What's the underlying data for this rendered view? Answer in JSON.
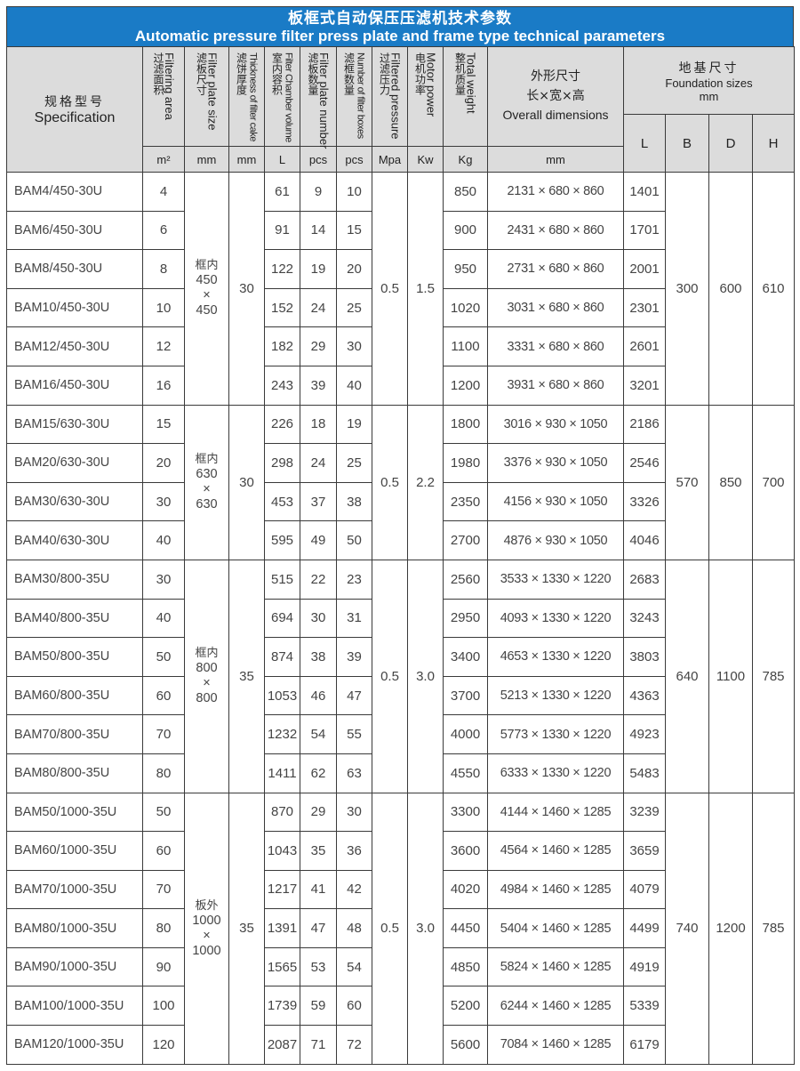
{
  "title": {
    "cn": "板框式自动保压压滤机技术参数",
    "en": "Automatic pressure filter press plate and frame type technical parameters"
  },
  "headers": {
    "spec": {
      "cn": "规格型号",
      "en": "Specification"
    },
    "area": {
      "cn": "过滤面积",
      "en": "Filtering area",
      "unit": "m²"
    },
    "plate_size": {
      "cn": "滤板尺寸",
      "en": "Filter plate size",
      "unit": "mm"
    },
    "cake": {
      "cn": "滤饼厚度",
      "en": "Thickness of filter cake",
      "unit": "mm"
    },
    "volume": {
      "cn": "室内容积",
      "en": "Filter Chamber volume",
      "unit": "L"
    },
    "plates": {
      "cn": "滤板数量",
      "en": "Filter plate number",
      "unit": "pcs"
    },
    "boxes": {
      "cn": "滤框数量",
      "en": "Number of filter boxes",
      "unit": "pcs"
    },
    "pressure": {
      "cn": "过滤压力",
      "en": "Filtered pressure",
      "unit": "Mpa"
    },
    "power": {
      "cn": "电机功率",
      "en": "Motor power",
      "unit": "Kw"
    },
    "weight": {
      "cn": "整机质量",
      "en": "Total weight",
      "unit": "Kg"
    },
    "dims": {
      "cn": "外形尺寸",
      "cn2": "长×宽×高",
      "en": "Overall dimensions",
      "unit": "mm"
    },
    "foundation": {
      "cn": "地基尺寸",
      "en": "Foundation sizes",
      "unit": "mm",
      "L": "L",
      "B": "B",
      "D": "D",
      "H": "H"
    }
  },
  "groups": [
    {
      "plate_prefix": "框内",
      "plate_a": "450",
      "plate_x": "×",
      "plate_b": "450",
      "cake": "30",
      "pressure": "0.5",
      "power": "1.5",
      "B": "300",
      "D": "600",
      "H": "610",
      "rows": [
        {
          "spec": "BAM4/450-30U",
          "area": "4",
          "volume": "61",
          "plates": "9",
          "boxes": "10",
          "weight": "850",
          "dims": "2131 × 680 × 860",
          "L": "1401"
        },
        {
          "spec": "BAM6/450-30U",
          "area": "6",
          "volume": "91",
          "plates": "14",
          "boxes": "15",
          "weight": "900",
          "dims": "2431 × 680 × 860",
          "L": "1701"
        },
        {
          "spec": "BAM8/450-30U",
          "area": "8",
          "volume": "122",
          "plates": "19",
          "boxes": "20",
          "weight": "950",
          "dims": "2731 × 680 × 860",
          "L": "2001"
        },
        {
          "spec": "BAM10/450-30U",
          "area": "10",
          "volume": "152",
          "plates": "24",
          "boxes": "25",
          "weight": "1020",
          "dims": "3031 × 680 × 860",
          "L": "2301"
        },
        {
          "spec": "BAM12/450-30U",
          "area": "12",
          "volume": "182",
          "plates": "29",
          "boxes": "30",
          "weight": "1100",
          "dims": "3331 × 680 × 860",
          "L": "2601"
        },
        {
          "spec": "BAM16/450-30U",
          "area": "16",
          "volume": "243",
          "plates": "39",
          "boxes": "40",
          "weight": "1200",
          "dims": "3931 × 680 × 860",
          "L": "3201"
        }
      ]
    },
    {
      "plate_prefix": "框内",
      "plate_a": "630",
      "plate_x": "×",
      "plate_b": "630",
      "cake": "30",
      "pressure": "0.5",
      "power": "2.2",
      "B": "570",
      "D": "850",
      "H": "700",
      "rows": [
        {
          "spec": "BAM15/630-30U",
          "area": "15",
          "volume": "226",
          "plates": "18",
          "boxes": "19",
          "weight": "1800",
          "dims": "3016 × 930 × 1050",
          "L": "2186"
        },
        {
          "spec": "BAM20/630-30U",
          "area": "20",
          "volume": "298",
          "plates": "24",
          "boxes": "25",
          "weight": "1980",
          "dims": "3376 × 930 × 1050",
          "L": "2546"
        },
        {
          "spec": "BAM30/630-30U",
          "area": "30",
          "volume": "453",
          "plates": "37",
          "boxes": "38",
          "weight": "2350",
          "dims": "4156 × 930 × 1050",
          "L": "3326"
        },
        {
          "spec": "BAM40/630-30U",
          "area": "40",
          "volume": "595",
          "plates": "49",
          "boxes": "50",
          "weight": "2700",
          "dims": "4876 × 930 × 1050",
          "L": "4046"
        }
      ]
    },
    {
      "plate_prefix": "框内",
      "plate_a": "800",
      "plate_x": "×",
      "plate_b": "800",
      "cake": "35",
      "pressure": "0.5",
      "power": "3.0",
      "B": "640",
      "D": "1100",
      "H": "785",
      "rows": [
        {
          "spec": "BAM30/800-35U",
          "area": "30",
          "volume": "515",
          "plates": "22",
          "boxes": "23",
          "weight": "2560",
          "dims": "3533 × 1330 × 1220",
          "L": "2683"
        },
        {
          "spec": "BAM40/800-35U",
          "area": "40",
          "volume": "694",
          "plates": "30",
          "boxes": "31",
          "weight": "2950",
          "dims": "4093 × 1330 × 1220",
          "L": "3243"
        },
        {
          "spec": "BAM50/800-35U",
          "area": "50",
          "volume": "874",
          "plates": "38",
          "boxes": "39",
          "weight": "3400",
          "dims": "4653 × 1330 × 1220",
          "L": "3803"
        },
        {
          "spec": "BAM60/800-35U",
          "area": "60",
          "volume": "1053",
          "plates": "46",
          "boxes": "47",
          "weight": "3700",
          "dims": "5213 × 1330 × 1220",
          "L": "4363"
        },
        {
          "spec": "BAM70/800-35U",
          "area": "70",
          "volume": "1232",
          "plates": "54",
          "boxes": "55",
          "weight": "4000",
          "dims": "5773 × 1330 × 1220",
          "L": "4923"
        },
        {
          "spec": "BAM80/800-35U",
          "area": "80",
          "volume": "1411",
          "plates": "62",
          "boxes": "63",
          "weight": "4550",
          "dims": "6333 × 1330 × 1220",
          "L": "5483"
        }
      ]
    },
    {
      "plate_prefix": "板外",
      "plate_a": "1000",
      "plate_x": "×",
      "plate_b": "1000",
      "cake": "35",
      "pressure": "0.5",
      "power": "3.0",
      "B": "740",
      "D": "1200",
      "H": "785",
      "rows": [
        {
          "spec": "BAM50/1000-35U",
          "area": "50",
          "volume": "870",
          "plates": "29",
          "boxes": "30",
          "weight": "3300",
          "dims": "4144 × 1460 × 1285",
          "L": "3239"
        },
        {
          "spec": "BAM60/1000-35U",
          "area": "60",
          "volume": "1043",
          "plates": "35",
          "boxes": "36",
          "weight": "3600",
          "dims": "4564 × 1460 × 1285",
          "L": "3659"
        },
        {
          "spec": "BAM70/1000-35U",
          "area": "70",
          "volume": "1217",
          "plates": "41",
          "boxes": "42",
          "weight": "4020",
          "dims": "4984 × 1460 × 1285",
          "L": "4079"
        },
        {
          "spec": "BAM80/1000-35U",
          "area": "80",
          "volume": "1391",
          "plates": "47",
          "boxes": "48",
          "weight": "4450",
          "dims": "5404 × 1460 × 1285",
          "L": "4499"
        },
        {
          "spec": "BAM90/1000-35U",
          "area": "90",
          "volume": "1565",
          "plates": "53",
          "boxes": "54",
          "weight": "4850",
          "dims": "5824 × 1460 × 1285",
          "L": "4919"
        },
        {
          "spec": "BAM100/1000-35U",
          "area": "100",
          "volume": "1739",
          "plates": "59",
          "boxes": "60",
          "weight": "5200",
          "dims": "6244 × 1460 × 1285",
          "L": "5339"
        },
        {
          "spec": "BAM120/1000-35U",
          "area": "120",
          "volume": "2087",
          "plates": "71",
          "boxes": "72",
          "weight": "5600",
          "dims": "7084 × 1460 × 1285",
          "L": "6179"
        }
      ]
    }
  ]
}
